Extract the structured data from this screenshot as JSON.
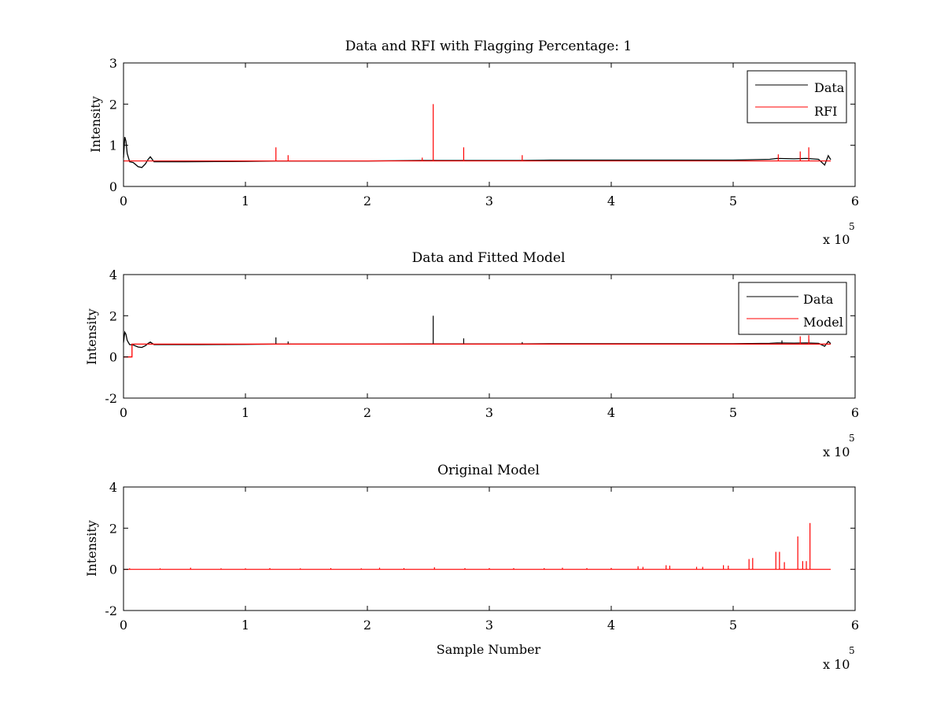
{
  "figure": {
    "background": "#ffffff"
  },
  "chart_data": [
    {
      "type": "line",
      "title": "Data and RFI with Flagging Percentage: 1",
      "xlabel": "",
      "ylabel": "Intensity",
      "xlim": [
        0,
        6
      ],
      "ylim": [
        0,
        3
      ],
      "x_ticks": [
        "0",
        "1",
        "2",
        "3",
        "4",
        "5",
        "6"
      ],
      "y_ticks": [
        "0",
        "1",
        "2",
        "3"
      ],
      "x_exponent": "x 10",
      "x_exponent_power": "5",
      "grid": false,
      "legend_position": "top-right",
      "series": [
        {
          "name": "Data",
          "color": "#000000",
          "x": [
            0,
            0.01,
            0.02,
            0.03,
            0.05,
            0.08,
            0.12,
            0.15,
            0.18,
            0.2,
            0.22,
            0.25,
            0.5,
            1.0,
            1.24,
            1.3,
            1.5,
            2.0,
            2.45,
            2.55,
            2.79,
            3.0,
            3.27,
            3.5,
            4.0,
            4.5,
            5.0,
            5.15,
            5.3,
            5.36,
            5.5,
            5.6,
            5.7,
            5.75,
            5.78,
            5.8
          ],
          "y": [
            0.7,
            1.2,
            1.1,
            0.8,
            0.6,
            0.58,
            0.48,
            0.46,
            0.55,
            0.65,
            0.72,
            0.6,
            0.6,
            0.61,
            0.62,
            0.62,
            0.62,
            0.62,
            0.63,
            0.63,
            0.63,
            0.63,
            0.63,
            0.64,
            0.64,
            0.64,
            0.64,
            0.65,
            0.66,
            0.68,
            0.67,
            0.68,
            0.66,
            0.52,
            0.75,
            0.65
          ]
        },
        {
          "name": "RFI",
          "color": "#ff0000",
          "spikes_x": [
            1.25,
            1.35,
            2.45,
            2.54,
            2.79,
            3.27,
            5.37,
            5.55,
            5.62
          ],
          "spikes_y": [
            0.95,
            0.76,
            0.7,
            2.0,
            0.95,
            0.76,
            0.78,
            0.85,
            0.95
          ],
          "baseline": 0.62
        }
      ]
    },
    {
      "type": "line",
      "title": "Data and Fitted Model",
      "xlabel": "",
      "ylabel": "Intensity",
      "xlim": [
        0,
        6
      ],
      "ylim": [
        -2,
        4
      ],
      "x_ticks": [
        "0",
        "1",
        "2",
        "3",
        "4",
        "5",
        "6"
      ],
      "y_ticks": [
        "-2",
        "0",
        "2",
        "4"
      ],
      "x_exponent": "x 10",
      "x_exponent_power": "5",
      "grid": false,
      "legend_position": "top-right",
      "series": [
        {
          "name": "Data",
          "color": "#000000",
          "x": [
            0,
            0.01,
            0.02,
            0.03,
            0.05,
            0.08,
            0.12,
            0.15,
            0.18,
            0.2,
            0.22,
            0.25,
            0.5,
            1.0,
            1.24,
            1.3,
            1.5,
            2.0,
            2.45,
            2.55,
            2.79,
            3.0,
            3.27,
            3.5,
            4.0,
            4.5,
            5.0,
            5.15,
            5.3,
            5.36,
            5.5,
            5.6,
            5.7,
            5.75,
            5.78,
            5.8
          ],
          "y": [
            0.7,
            1.2,
            1.1,
            0.8,
            0.6,
            0.58,
            0.48,
            0.46,
            0.55,
            0.65,
            0.72,
            0.6,
            0.6,
            0.61,
            0.62,
            0.62,
            0.62,
            0.62,
            0.63,
            0.63,
            0.63,
            0.63,
            0.63,
            0.64,
            0.64,
            0.64,
            0.64,
            0.65,
            0.66,
            0.68,
            0.67,
            0.68,
            0.66,
            0.52,
            0.75,
            0.65
          ],
          "spikes_x": [
            1.25,
            1.35,
            2.54,
            2.79,
            3.27,
            5.4,
            5.62
          ],
          "spikes_y": [
            0.95,
            0.75,
            2.0,
            0.9,
            0.72,
            0.8,
            0.85
          ]
        },
        {
          "name": "Model",
          "color": "#ff0000",
          "x": [
            0,
            0.07,
            0.07,
            5.8
          ],
          "y": [
            0,
            0,
            0.62,
            0.62
          ],
          "spikes_x": [
            5.55,
            5.62
          ],
          "spikes_y": [
            1.0,
            1.05
          ]
        }
      ]
    },
    {
      "type": "line",
      "title": "Original Model",
      "xlabel": "Sample Number",
      "ylabel": "Intensity",
      "xlim": [
        0,
        6
      ],
      "ylim": [
        -2,
        4
      ],
      "x_ticks": [
        "0",
        "1",
        "2",
        "3",
        "4",
        "5",
        "6"
      ],
      "y_ticks": [
        "-2",
        "0",
        "2",
        "4"
      ],
      "x_exponent": "x 10",
      "x_exponent_power": "5",
      "grid": false,
      "series": [
        {
          "color": "#ff0000",
          "baseline": 0,
          "spikes_x": [
            0.05,
            0.3,
            0.55,
            0.8,
            1.0,
            1.2,
            1.45,
            1.7,
            1.95,
            2.1,
            2.3,
            2.55,
            2.8,
            3.0,
            3.2,
            3.45,
            3.6,
            3.8,
            4.0,
            4.22,
            4.26,
            4.45,
            4.48,
            4.7,
            4.75,
            4.92,
            4.96,
            5.13,
            5.16,
            5.35,
            5.38,
            5.42,
            5.53,
            5.57,
            5.6,
            5.63
          ],
          "spikes_y": [
            0.05,
            0.05,
            0.08,
            0.05,
            0.05,
            0.06,
            0.05,
            0.06,
            0.05,
            0.08,
            0.06,
            0.1,
            0.06,
            0.06,
            0.06,
            0.06,
            0.08,
            0.06,
            0.07,
            0.15,
            0.12,
            0.2,
            0.18,
            0.12,
            0.12,
            0.2,
            0.18,
            0.5,
            0.55,
            0.85,
            0.85,
            0.35,
            1.6,
            0.4,
            0.4,
            2.25
          ]
        }
      ]
    }
  ]
}
